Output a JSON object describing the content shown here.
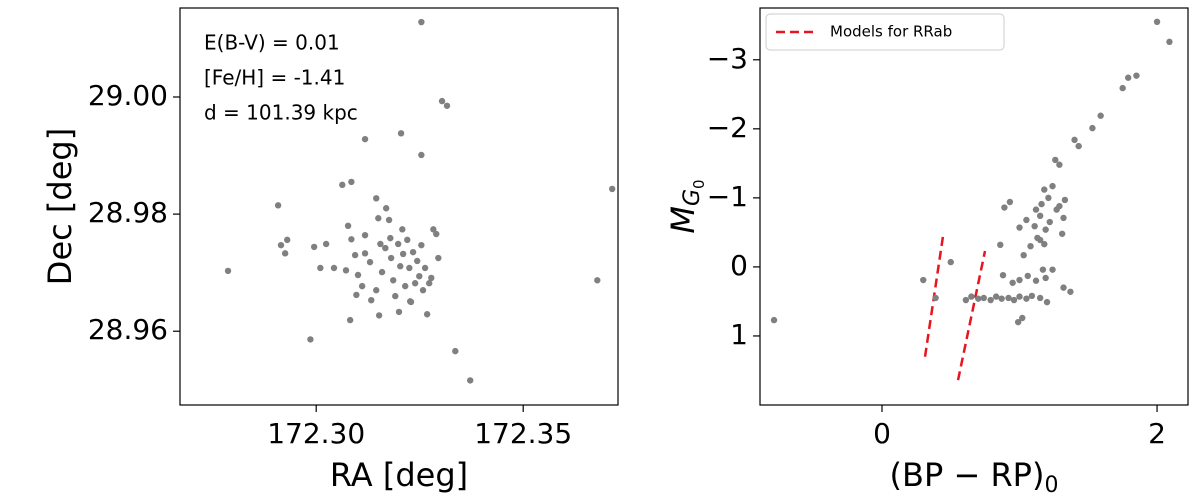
{
  "chart_data": [
    {
      "type": "scatter",
      "xlabel": "RA [deg]",
      "ylabel": "Dec [deg]",
      "annotations": [
        "E(B-V) = 0.01",
        "[Fe/H] = -1.41",
        "d = 101.39 kpc"
      ],
      "color": "#808080",
      "xlim": [
        172.2671,
        172.3729
      ],
      "xticks": [
        {
          "value": 172.3,
          "label": "172.30"
        },
        {
          "value": 172.35,
          "label": "172.35"
        }
      ],
      "ylim": [
        28.9474,
        29.0152
      ],
      "yticks": [
        28.96,
        28.98,
        {
          "value": 29.0,
          "label": "29.00"
        }
      ],
      "x": [
        172.3254,
        172.3304,
        172.3316,
        172.3205,
        172.3254,
        172.3118,
        172.2908,
        172.3085,
        172.3063,
        172.2787,
        172.3715,
        172.2925,
        172.2915,
        172.293,
        172.2995,
        172.301,
        172.3024,
        172.3043,
        172.3077,
        172.3085,
        172.3094,
        172.3101,
        172.3118,
        172.3118,
        172.313,
        172.3145,
        172.315,
        172.3155,
        172.3159,
        172.3169,
        172.3176,
        172.3179,
        172.3181,
        172.3186,
        172.3191,
        172.3198,
        172.3203,
        172.3208,
        172.321,
        172.3215,
        172.322,
        172.3225,
        172.3229,
        172.3234,
        172.3239,
        172.3244,
        172.3249,
        172.3254,
        172.3258,
        172.3263,
        172.3268,
        172.3273,
        172.3278,
        172.3283,
        172.329,
        172.3295,
        172.3133,
        172.3152,
        172.3145,
        172.3082,
        172.2986,
        172.3072,
        172.3167,
        172.32,
        172.3097,
        172.3679,
        172.3336,
        172.3372,
        172.3227,
        172.3111
      ],
      "y": [
        29.0128,
        28.9993,
        28.9985,
        28.9938,
        28.9901,
        28.9928,
        28.9815,
        28.9855,
        28.985,
        28.9703,
        28.9843,
        28.9733,
        28.9747,
        28.9756,
        28.9744,
        28.9708,
        28.9749,
        28.9708,
        28.978,
        28.9757,
        28.973,
        28.9696,
        28.9764,
        28.9733,
        28.9718,
        28.9827,
        28.9793,
        28.9749,
        28.9701,
        28.981,
        28.979,
        28.9759,
        28.9725,
        28.9687,
        28.966,
        28.9749,
        28.9711,
        28.9774,
        28.9732,
        28.9677,
        28.9756,
        28.9708,
        28.965,
        28.9735,
        28.9682,
        28.972,
        28.9694,
        28.9747,
        28.967,
        28.9708,
        28.9629,
        28.9682,
        28.9691,
        28.9774,
        28.9766,
        28.9725,
        28.9653,
        28.9627,
        28.967,
        28.9619,
        28.9586,
        28.9704,
        28.9742,
        28.9633,
        28.9662,
        28.9687,
        28.9566,
        28.9516,
        28.9651,
        28.9677
      ]
    },
    {
      "type": "scatter",
      "xlabel": [
        "(BP − RP)",
        "0"
      ],
      "ylabel": [
        "M",
        "G",
        "0"
      ],
      "color": "#808080",
      "xlim": [
        -0.887,
        2.225
      ],
      "xticks": [
        0,
        2
      ],
      "ylim": [
        2.0,
        -3.75
      ],
      "yticks": [
        1,
        0,
        {
          "value": -1,
          "label": "−1"
        },
        {
          "value": -2,
          "label": "−2"
        },
        {
          "value": -3,
          "label": "−3"
        }
      ],
      "legend": "upper left",
      "lines": [
        {
          "name": "Models for RRab",
          "color": "#e8141f",
          "dashed": true,
          "x": [
            0.313,
            0.444
          ],
          "values": [
            1.3,
            -0.45
          ]
        },
        {
          "color": "#e8141f",
          "dashed": true,
          "x": [
            0.553,
            0.749
          ],
          "values": [
            1.64,
            -0.23
          ]
        }
      ],
      "x": [
        -0.785,
        0.3,
        0.39,
        0.5,
        0.61,
        0.65,
        0.7,
        0.74,
        0.79,
        0.83,
        0.87,
        0.92,
        0.96,
        1.0,
        1.05,
        1.09,
        1.15,
        1.2,
        0.99,
        1.02,
        0.88,
        0.95,
        1.0,
        1.06,
        1.12,
        1.17,
        1.19,
        1.24,
        1.03,
        1.08,
        1.13,
        1.18,
        1.0,
        1.05,
        1.11,
        1.15,
        1.19,
        1.22,
        1.12,
        1.16,
        1.21,
        1.24,
        1.18,
        1.27,
        1.29,
        1.15,
        1.31,
        1.32,
        1.33,
        0.89,
        0.93,
        0.86,
        1.26,
        1.29,
        1.4,
        1.43,
        1.59,
        1.75,
        1.79,
        1.85,
        2.0,
        2.09,
        1.53,
        1.32,
        1.37
      ],
      "y": [
        0.77,
        0.19,
        0.45,
        -0.07,
        0.48,
        0.43,
        0.46,
        0.45,
        0.48,
        0.43,
        0.46,
        0.45,
        0.48,
        0.43,
        0.46,
        0.42,
        0.45,
        0.51,
        0.8,
        0.74,
        0.12,
        0.23,
        0.19,
        0.13,
        0.2,
        0.04,
        0.16,
        0.04,
        -0.17,
        -0.3,
        -0.42,
        -0.33,
        -0.57,
        -0.68,
        -0.59,
        -0.74,
        -0.54,
        -0.65,
        -0.83,
        -0.91,
        -1.0,
        -1.17,
        -1.12,
        -0.83,
        -0.88,
        -0.39,
        -0.48,
        -0.71,
        -0.97,
        -0.86,
        -0.94,
        -0.32,
        -1.55,
        -1.48,
        -1.84,
        -1.75,
        -2.19,
        -2.59,
        -2.74,
        -2.77,
        -3.55,
        -3.26,
        -2.01,
        0.3,
        0.36
      ]
    }
  ]
}
